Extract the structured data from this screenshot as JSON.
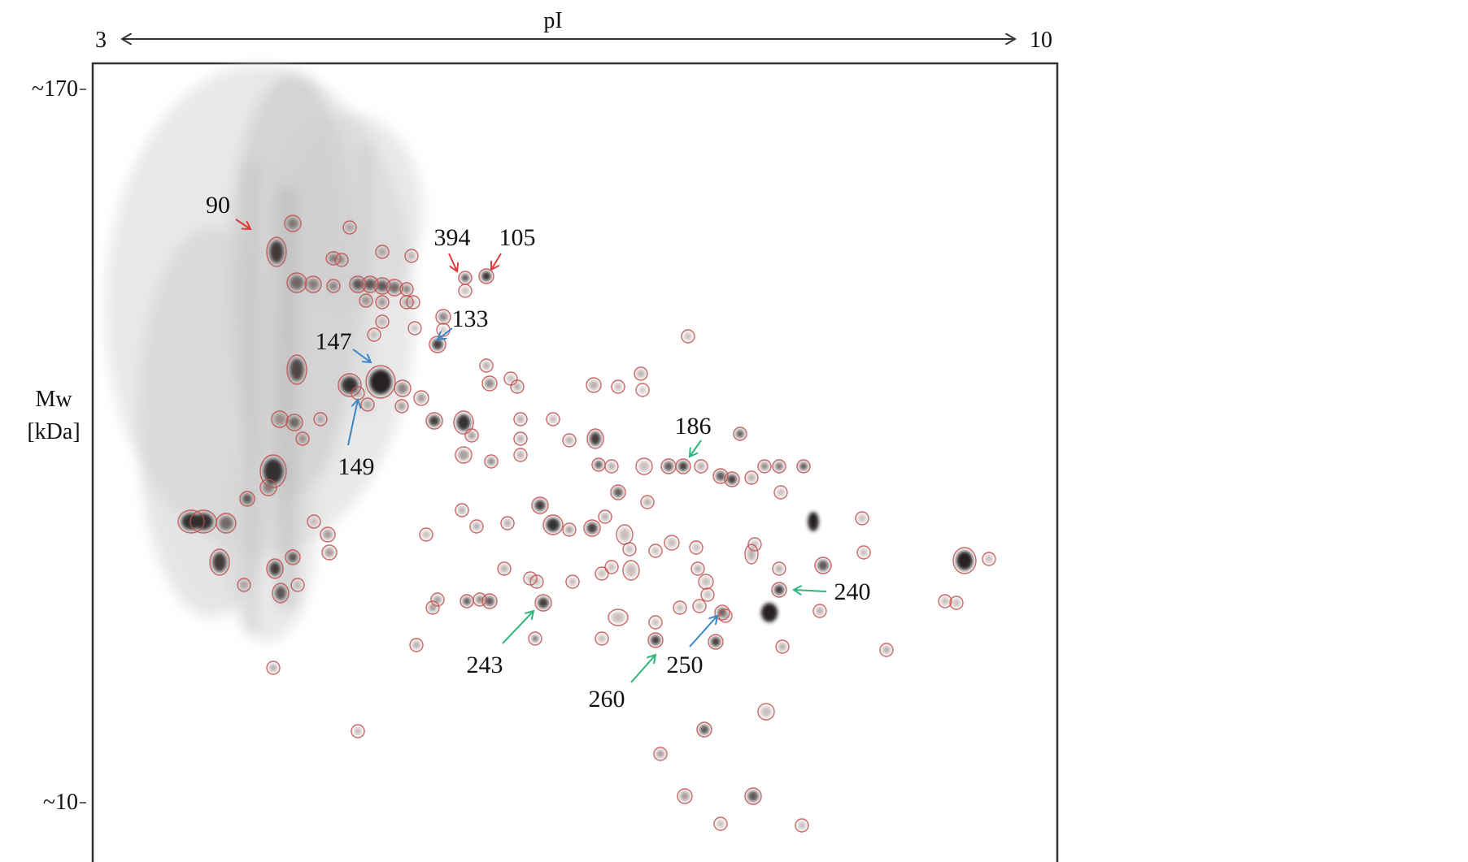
{
  "x_axis": {
    "label": "pI",
    "min_label": "3",
    "max_label": "10"
  },
  "y_axis": {
    "label_line1": "Mw",
    "label_line2": "[kDa]",
    "top_tick": "~170",
    "bottom_tick": "~10"
  },
  "spot_labels": [
    {
      "id": "90",
      "arrow_color": "#e03a3a"
    },
    {
      "id": "394",
      "arrow_color": "#e03a3a"
    },
    {
      "id": "105",
      "arrow_color": "#e03a3a"
    },
    {
      "id": "133",
      "arrow_color": "#3a86c8"
    },
    {
      "id": "147",
      "arrow_color": "#3a86c8"
    },
    {
      "id": "149",
      "arrow_color": "#3a86c8"
    },
    {
      "id": "186",
      "arrow_color": "#2fb57c"
    },
    {
      "id": "240",
      "arrow_color": "#2fb57c"
    },
    {
      "id": "243",
      "arrow_color": "#2fb57c"
    },
    {
      "id": "250",
      "arrow_color": "#3a86c8"
    },
    {
      "id": "260",
      "arrow_color": "#2fb57c"
    }
  ],
  "colors": {
    "red": "#e03a3a",
    "blue": "#3a86c8",
    "green": "#2fb57c",
    "spot_ring": "#c0504d"
  }
}
